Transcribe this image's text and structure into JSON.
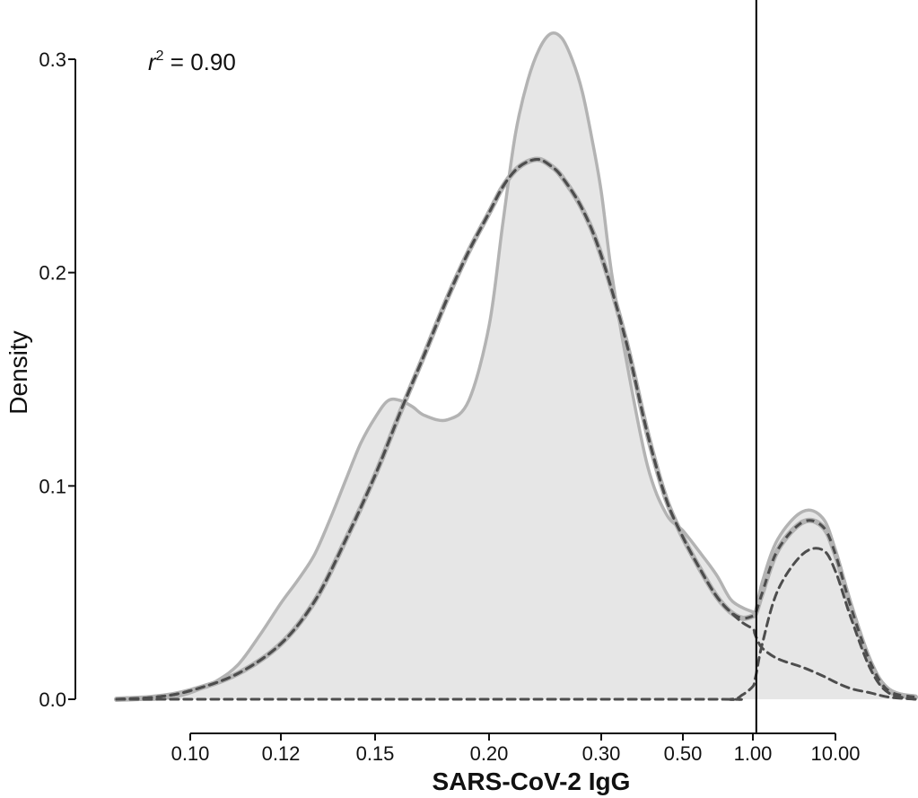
{
  "chart_data": {
    "type": "area",
    "xlabel": "SARS-CoV-2 IgG",
    "ylabel": "Density",
    "annotation": {
      "symbol": "r",
      "exponent": "2",
      "text": " = 0.90"
    },
    "ylim": [
      0,
      0.3
    ],
    "y_ticks": [
      "0.0",
      "0.1",
      "0.2",
      "0.3"
    ],
    "x_ticks": [
      "0.10",
      "0.12",
      "0.15",
      "0.20",
      "0.30",
      "0.50",
      "1.00",
      "10.00"
    ],
    "x_scale": "log (non-uniform tick spacing)",
    "threshold_x": 1.1,
    "colors": {
      "density_fill": "#e6e6e6",
      "density_line": "#b3b3b3",
      "fitted_line": "#4d4d4d",
      "threshold_line": "#000000"
    },
    "series": [
      {
        "type": "area",
        "x": [
          0.08,
          0.09,
          0.095,
          0.1,
          0.105,
          0.11,
          0.115,
          0.12,
          0.125,
          0.13,
          0.135,
          0.14,
          0.145,
          0.15,
          0.155,
          0.16,
          0.165,
          0.17,
          0.18,
          0.19,
          0.2,
          0.21,
          0.22,
          0.23,
          0.24,
          0.25,
          0.26,
          0.27,
          0.28,
          0.29,
          0.3,
          0.32,
          0.35,
          0.4,
          0.45,
          0.5,
          0.6,
          0.7,
          0.8,
          0.9,
          1.0,
          1.05,
          1.1,
          1.3,
          2.0,
          4.0,
          7.0,
          10.0,
          15.0,
          25.0,
          40.0,
          80.0
        ],
        "values": [
          0.0,
          0.0,
          0.001,
          0.003,
          0.008,
          0.016,
          0.03,
          0.045,
          0.056,
          0.068,
          0.085,
          0.103,
          0.12,
          0.132,
          0.14,
          0.14,
          0.137,
          0.133,
          0.131,
          0.14,
          0.175,
          0.222,
          0.265,
          0.29,
          0.305,
          0.312,
          0.31,
          0.3,
          0.285,
          0.263,
          0.238,
          0.2,
          0.16,
          0.11,
          0.087,
          0.079,
          0.068,
          0.058,
          0.047,
          0.043,
          0.041,
          0.041,
          0.042,
          0.055,
          0.075,
          0.088,
          0.085,
          0.07,
          0.045,
          0.018,
          0.005,
          0.001
        ]
      },
      {
        "type": "line",
        "x": [
          0.08,
          0.09,
          0.1,
          0.11,
          0.12,
          0.13,
          0.14,
          0.15,
          0.16,
          0.17,
          0.18,
          0.19,
          0.2,
          0.21,
          0.22,
          0.23,
          0.24,
          0.25,
          0.26,
          0.28,
          0.3,
          0.35,
          0.4,
          0.45,
          0.5,
          0.6,
          0.7,
          0.8,
          0.9,
          1.0,
          1.05,
          1.1,
          1.3,
          2.0,
          4.0,
          7.0,
          10.0,
          15.0,
          25.0,
          40.0,
          80.0
        ],
        "values": [
          0.0,
          0.001,
          0.004,
          0.012,
          0.026,
          0.046,
          0.075,
          0.105,
          0.135,
          0.162,
          0.188,
          0.21,
          0.228,
          0.24,
          0.248,
          0.252,
          0.253,
          0.25,
          0.245,
          0.23,
          0.208,
          0.168,
          0.125,
          0.094,
          0.076,
          0.06,
          0.048,
          0.041,
          0.038,
          0.039,
          0.04,
          0.041,
          0.05,
          0.07,
          0.083,
          0.081,
          0.068,
          0.043,
          0.017,
          0.004,
          0.001
        ]
      },
      {
        "type": "line",
        "x": [
          0.08,
          0.09,
          0.1,
          0.11,
          0.12,
          0.13,
          0.14,
          0.15,
          0.16,
          0.17,
          0.18,
          0.19,
          0.2,
          0.21,
          0.22,
          0.23,
          0.24,
          0.25,
          0.26,
          0.28,
          0.3,
          0.35,
          0.4,
          0.45,
          0.5,
          0.6,
          0.7,
          0.8,
          0.9,
          1.0,
          1.05,
          1.1,
          1.3,
          2.0,
          4.0,
          7.0,
          10.0,
          15.0,
          25.0,
          40.0,
          80.0
        ],
        "values": [
          0.0,
          0.001,
          0.004,
          0.012,
          0.026,
          0.046,
          0.075,
          0.105,
          0.135,
          0.162,
          0.188,
          0.21,
          0.228,
          0.24,
          0.248,
          0.252,
          0.253,
          0.25,
          0.245,
          0.23,
          0.208,
          0.168,
          0.125,
          0.094,
          0.076,
          0.06,
          0.048,
          0.041,
          0.036,
          0.033,
          0.031,
          0.029,
          0.024,
          0.019,
          0.015,
          0.011,
          0.008,
          0.005,
          0.003,
          0.001,
          0.0
        ]
      },
      {
        "type": "line",
        "x": [
          0.08,
          0.5,
          0.8,
          0.9,
          1.0,
          1.05,
          1.1,
          1.3,
          2.0,
          4.0,
          7.0,
          10.0,
          15.0,
          25.0,
          40.0,
          80.0
        ],
        "values": [
          0.0,
          0.0,
          0.0,
          0.002,
          0.006,
          0.009,
          0.012,
          0.026,
          0.051,
          0.068,
          0.07,
          0.06,
          0.038,
          0.014,
          0.003,
          0.0
        ]
      }
    ]
  }
}
